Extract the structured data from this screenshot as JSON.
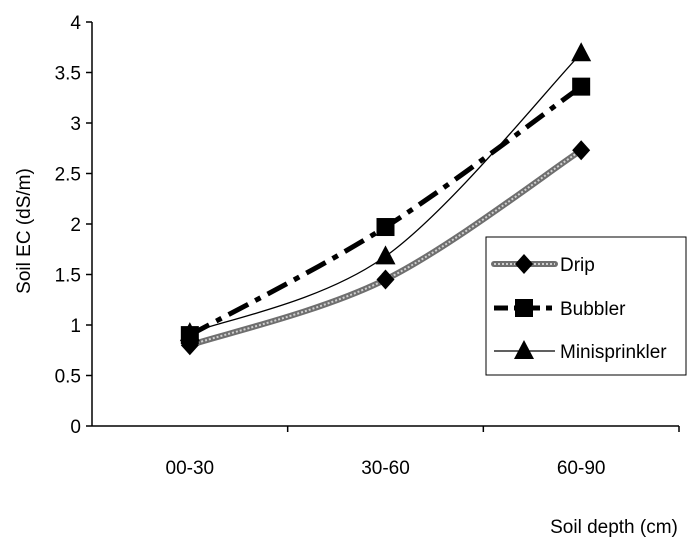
{
  "chart_data": {
    "type": "line",
    "categories": [
      "00-30",
      "30-60",
      "60-90"
    ],
    "xlabel": "Soil depth (cm)",
    "ylabel": "Soil EC (dS/m)",
    "ylim": [
      0,
      4
    ],
    "yticks": [
      "0",
      "0.5",
      "1",
      "1.5",
      "2",
      "2.5",
      "3",
      "3.5",
      "4"
    ],
    "grid": false,
    "legend_position": "right",
    "series": [
      {
        "name": "Drip",
        "values": [
          0.8,
          1.45,
          2.73
        ],
        "marker": "diamond",
        "color": "#8c8c8c",
        "line_style": "textured-gray"
      },
      {
        "name": "Bubbler",
        "values": [
          0.9,
          1.97,
          3.36
        ],
        "marker": "square",
        "color": "#000000",
        "line_style": "dash-dot"
      },
      {
        "name": "Minisprinkler",
        "values": [
          0.92,
          1.68,
          3.69
        ],
        "marker": "triangle",
        "color": "#000000",
        "line_style": "thin-solid"
      }
    ]
  }
}
